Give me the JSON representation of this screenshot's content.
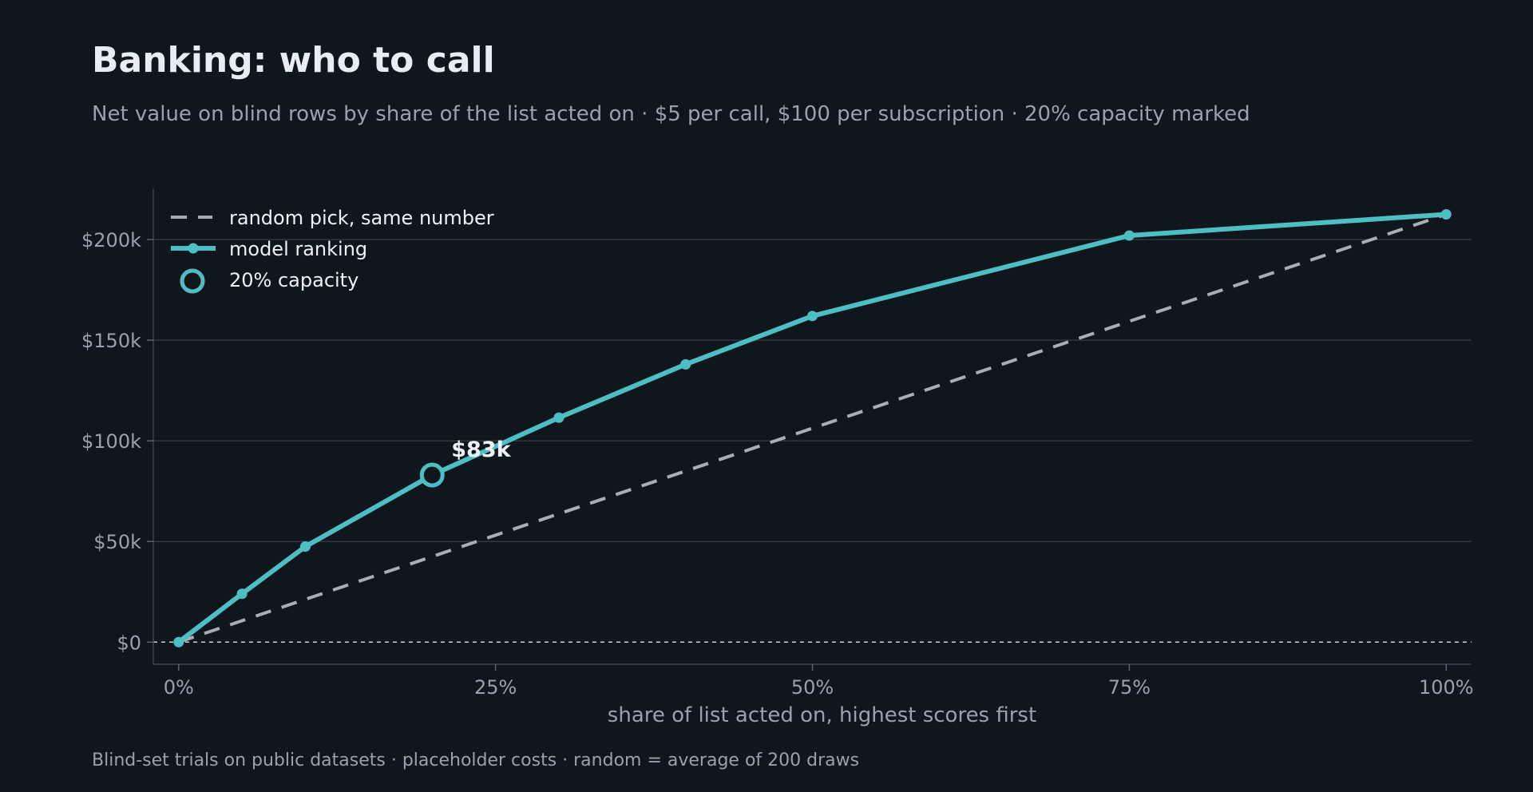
{
  "title": "Banking: who to call",
  "subtitle": "Net value on blind rows by share of the list acted on · $5 per call, $100 per subscription · 20% capacity marked",
  "footer": "Blind-set trials on public datasets · placeholder costs · random = average of 200 draws",
  "colors": {
    "background": "#10161e",
    "model": "#4dbfc4",
    "random": "#a9aeb3",
    "grid": "#2e3841",
    "text": "#eef2f5",
    "muted": "#98a2ac"
  },
  "chart_data": {
    "type": "line",
    "xlabel": "share of list acted on, highest scores first",
    "ylabel": "",
    "x_ticks": [
      0,
      25,
      50,
      75,
      100
    ],
    "x_tick_labels": [
      "0%",
      "25%",
      "50%",
      "75%",
      "100%"
    ],
    "y_ticks": [
      0,
      50000,
      100000,
      150000,
      200000
    ],
    "y_tick_labels": [
      "$0",
      "$50k",
      "$100k",
      "$150k",
      "$200k"
    ],
    "xlim": [
      -2,
      102
    ],
    "ylim": [
      -11000,
      225000
    ],
    "grid": "horizontal",
    "legend_position": "top-left",
    "series": [
      {
        "name": "random pick, same number",
        "style": "dashed",
        "x": [
          0,
          100
        ],
        "y": [
          0,
          212500
        ]
      },
      {
        "name": "model ranking",
        "style": "solid-markers",
        "x": [
          0,
          5,
          10,
          20,
          30,
          40,
          50,
          75,
          100
        ],
        "y": [
          0,
          24000,
          47500,
          83000,
          111500,
          138000,
          162000,
          202000,
          212500
        ]
      }
    ],
    "marker": {
      "name": "20% capacity",
      "x": 20,
      "y": 83000,
      "label": "$83k"
    },
    "zero_line": true
  }
}
